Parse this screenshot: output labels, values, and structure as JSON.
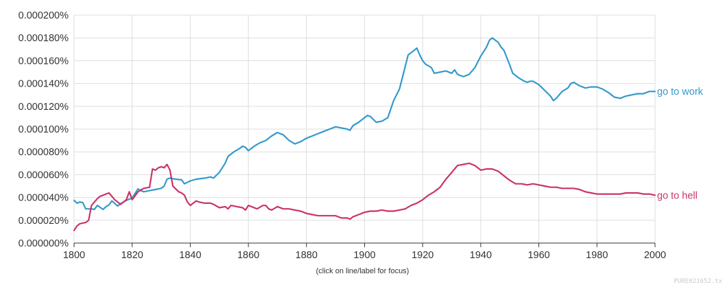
{
  "chart_data": {
    "type": "line",
    "title": "",
    "xlabel": "",
    "ylabel": "",
    "xlim": [
      1800,
      2000
    ],
    "ylim": [
      0,
      0.0002
    ],
    "grid": true,
    "x_ticks": [
      1800,
      1820,
      1840,
      1860,
      1880,
      1900,
      1920,
      1940,
      1960,
      1980,
      2000
    ],
    "x_tick_labels": [
      "1800",
      "1820",
      "1840",
      "1860",
      "1880",
      "1900",
      "1920",
      "1940",
      "1960",
      "1980",
      "2000"
    ],
    "y_ticks": [
      0,
      2e-05,
      4e-05,
      6e-05,
      8e-05,
      0.0001,
      0.00012,
      0.00014,
      0.00016,
      0.00018,
      0.0002
    ],
    "y_tick_labels": [
      "0.000000%",
      "0.000020%",
      "0.000040%",
      "0.000060%",
      "0.000080%",
      "0.000100%",
      "0.000120%",
      "0.000140%",
      "0.000160%",
      "0.000180%",
      "0.000200%"
    ],
    "legend_position": "end-of-line labels, right",
    "series": [
      {
        "name": "go to work",
        "color": "#3399cc",
        "points": [
          [
            1800,
            3.75e-05
          ],
          [
            1801,
            3.5e-05
          ],
          [
            1802,
            3.6e-05
          ],
          [
            1803,
            3.55e-05
          ],
          [
            1804,
            3e-05
          ],
          [
            1806,
            3e-05
          ],
          [
            1807,
            2.95e-05
          ],
          [
            1808,
            3.3e-05
          ],
          [
            1810,
            2.95e-05
          ],
          [
            1811,
            3.2e-05
          ],
          [
            1812,
            3.35e-05
          ],
          [
            1813,
            3.7e-05
          ],
          [
            1815,
            3.25e-05
          ],
          [
            1816,
            3.45e-05
          ],
          [
            1818,
            3.75e-05
          ],
          [
            1820,
            3.95e-05
          ],
          [
            1822,
            4.75e-05
          ],
          [
            1823,
            4.6e-05
          ],
          [
            1824,
            4.5e-05
          ],
          [
            1826,
            4.6e-05
          ],
          [
            1828,
            4.7e-05
          ],
          [
            1830,
            4.8e-05
          ],
          [
            1831,
            5e-05
          ],
          [
            1832,
            5.6e-05
          ],
          [
            1833,
            5.7e-05
          ],
          [
            1835,
            5.6e-05
          ],
          [
            1837,
            5.55e-05
          ],
          [
            1838,
            5.2e-05
          ],
          [
            1840,
            5.45e-05
          ],
          [
            1842,
            5.6e-05
          ],
          [
            1845,
            5.7e-05
          ],
          [
            1847,
            5.8e-05
          ],
          [
            1848,
            5.7e-05
          ],
          [
            1850,
            6.2e-05
          ],
          [
            1851,
            6.6e-05
          ],
          [
            1852,
            7e-05
          ],
          [
            1853,
            7.6e-05
          ],
          [
            1855,
            8e-05
          ],
          [
            1857,
            8.3e-05
          ],
          [
            1858,
            8.5e-05
          ],
          [
            1859,
            8.4e-05
          ],
          [
            1860,
            8.1e-05
          ],
          [
            1862,
            8.5e-05
          ],
          [
            1864,
            8.8e-05
          ],
          [
            1866,
            9e-05
          ],
          [
            1868,
            9.4e-05
          ],
          [
            1870,
            9.7e-05
          ],
          [
            1872,
            9.5e-05
          ],
          [
            1874,
            9e-05
          ],
          [
            1876,
            8.7e-05
          ],
          [
            1878,
            8.9e-05
          ],
          [
            1880,
            9.2e-05
          ],
          [
            1882,
            9.4e-05
          ],
          [
            1884,
            9.6e-05
          ],
          [
            1886,
            9.8e-05
          ],
          [
            1888,
            0.0001
          ],
          [
            1890,
            0.000102
          ],
          [
            1892,
            0.000101
          ],
          [
            1894,
            0.0001
          ],
          [
            1895,
            9.9e-05
          ],
          [
            1896,
            0.000103
          ],
          [
            1898,
            0.000106
          ],
          [
            1900,
            0.00011
          ],
          [
            1901,
            0.000112
          ],
          [
            1902,
            0.000111
          ],
          [
            1904,
            0.000106
          ],
          [
            1906,
            0.000107
          ],
          [
            1908,
            0.00011
          ],
          [
            1910,
            0.000125
          ],
          [
            1912,
            0.000135
          ],
          [
            1913,
            0.000145
          ],
          [
            1914,
            0.000155
          ],
          [
            1915,
            0.000165
          ],
          [
            1916,
            0.000167
          ],
          [
            1917,
            0.000169
          ],
          [
            1918,
            0.000171
          ],
          [
            1919,
            0.000165
          ],
          [
            1920,
            0.00016
          ],
          [
            1921,
            0.000157
          ],
          [
            1923,
            0.000154
          ],
          [
            1924,
            0.000149
          ],
          [
            1926,
            0.00015
          ],
          [
            1928,
            0.000151
          ],
          [
            1930,
            0.000149
          ],
          [
            1931,
            0.000152
          ],
          [
            1932,
            0.000148
          ],
          [
            1933,
            0.000147
          ],
          [
            1934,
            0.000146
          ],
          [
            1936,
            0.000148
          ],
          [
            1938,
            0.000154
          ],
          [
            1940,
            0.000164
          ],
          [
            1942,
            0.000172
          ],
          [
            1943,
            0.000178
          ],
          [
            1944,
            0.00018
          ],
          [
            1946,
            0.000176
          ],
          [
            1947,
            0.000172
          ],
          [
            1948,
            0.000169
          ],
          [
            1950,
            0.000156
          ],
          [
            1951,
            0.000149
          ],
          [
            1953,
            0.000145
          ],
          [
            1955,
            0.000142
          ],
          [
            1956,
            0.000141
          ],
          [
            1957,
            0.000142
          ],
          [
            1958,
            0.000142
          ],
          [
            1960,
            0.000139
          ],
          [
            1962,
            0.000134
          ],
          [
            1964,
            0.000129
          ],
          [
            1965,
            0.000125
          ],
          [
            1966,
            0.000127
          ],
          [
            1968,
            0.000133
          ],
          [
            1970,
            0.000136
          ],
          [
            1971,
            0.00014
          ],
          [
            1972,
            0.000141
          ],
          [
            1974,
            0.000138
          ],
          [
            1976,
            0.000136
          ],
          [
            1978,
            0.000137
          ],
          [
            1980,
            0.000137
          ],
          [
            1982,
            0.000135
          ],
          [
            1984,
            0.000132
          ],
          [
            1986,
            0.000128
          ],
          [
            1988,
            0.000127
          ],
          [
            1990,
            0.000129
          ],
          [
            1992,
            0.00013
          ],
          [
            1994,
            0.000131
          ],
          [
            1996,
            0.000131
          ],
          [
            1998,
            0.000133
          ],
          [
            2000,
            0.000133
          ]
        ]
      },
      {
        "name": "go to hell",
        "color": "#cc3366",
        "points": [
          [
            1800,
            1.1e-05
          ],
          [
            1801,
            1.5e-05
          ],
          [
            1802,
            1.7e-05
          ],
          [
            1804,
            1.8e-05
          ],
          [
            1805,
            2e-05
          ],
          [
            1806,
            3.3e-05
          ],
          [
            1808,
            3.9e-05
          ],
          [
            1809,
            4.1e-05
          ],
          [
            1810,
            4.2e-05
          ],
          [
            1811,
            4.3e-05
          ],
          [
            1812,
            4.4e-05
          ],
          [
            1813,
            4.1e-05
          ],
          [
            1814,
            3.8e-05
          ],
          [
            1816,
            3.4e-05
          ],
          [
            1818,
            3.8e-05
          ],
          [
            1819,
            4.5e-05
          ],
          [
            1820,
            3.8e-05
          ],
          [
            1822,
            4.5e-05
          ],
          [
            1824,
            4.8e-05
          ],
          [
            1826,
            4.9e-05
          ],
          [
            1827,
            6.5e-05
          ],
          [
            1828,
            6.4e-05
          ],
          [
            1829,
            6.6e-05
          ],
          [
            1830,
            6.7e-05
          ],
          [
            1831,
            6.6e-05
          ],
          [
            1832,
            6.9e-05
          ],
          [
            1833,
            6.4e-05
          ],
          [
            1834,
            5e-05
          ],
          [
            1836,
            4.5e-05
          ],
          [
            1837,
            4.4e-05
          ],
          [
            1838,
            4.2e-05
          ],
          [
            1839,
            3.6e-05
          ],
          [
            1840,
            3.3e-05
          ],
          [
            1842,
            3.7e-05
          ],
          [
            1843,
            3.6e-05
          ],
          [
            1845,
            3.5e-05
          ],
          [
            1847,
            3.5e-05
          ],
          [
            1848,
            3.4e-05
          ],
          [
            1850,
            3.1e-05
          ],
          [
            1852,
            3.2e-05
          ],
          [
            1853,
            3e-05
          ],
          [
            1854,
            3.3e-05
          ],
          [
            1856,
            3.2e-05
          ],
          [
            1858,
            3.1e-05
          ],
          [
            1859,
            2.9e-05
          ],
          [
            1860,
            3.3e-05
          ],
          [
            1862,
            3.1e-05
          ],
          [
            1863,
            3e-05
          ],
          [
            1865,
            3.3e-05
          ],
          [
            1866,
            3.3e-05
          ],
          [
            1867,
            3e-05
          ],
          [
            1868,
            2.9e-05
          ],
          [
            1870,
            3.2e-05
          ],
          [
            1872,
            3e-05
          ],
          [
            1874,
            3e-05
          ],
          [
            1876,
            2.9e-05
          ],
          [
            1878,
            2.8e-05
          ],
          [
            1880,
            2.6e-05
          ],
          [
            1882,
            2.5e-05
          ],
          [
            1884,
            2.4e-05
          ],
          [
            1886,
            2.4e-05
          ],
          [
            1888,
            2.4e-05
          ],
          [
            1890,
            2.4e-05
          ],
          [
            1892,
            2.2e-05
          ],
          [
            1894,
            2.2e-05
          ],
          [
            1895,
            2.1e-05
          ],
          [
            1896,
            2.3e-05
          ],
          [
            1898,
            2.5e-05
          ],
          [
            1900,
            2.7e-05
          ],
          [
            1902,
            2.8e-05
          ],
          [
            1904,
            2.8e-05
          ],
          [
            1906,
            2.9e-05
          ],
          [
            1908,
            2.8e-05
          ],
          [
            1910,
            2.8e-05
          ],
          [
            1912,
            2.9e-05
          ],
          [
            1914,
            3e-05
          ],
          [
            1916,
            3.3e-05
          ],
          [
            1918,
            3.5e-05
          ],
          [
            1920,
            3.8e-05
          ],
          [
            1922,
            4.2e-05
          ],
          [
            1924,
            4.5e-05
          ],
          [
            1926,
            4.9e-05
          ],
          [
            1928,
            5.6e-05
          ],
          [
            1930,
            6.2e-05
          ],
          [
            1932,
            6.8e-05
          ],
          [
            1934,
            6.9e-05
          ],
          [
            1936,
            7e-05
          ],
          [
            1938,
            6.8e-05
          ],
          [
            1940,
            6.4e-05
          ],
          [
            1942,
            6.5e-05
          ],
          [
            1944,
            6.5e-05
          ],
          [
            1946,
            6.3e-05
          ],
          [
            1948,
            5.9e-05
          ],
          [
            1950,
            5.5e-05
          ],
          [
            1952,
            5.2e-05
          ],
          [
            1954,
            5.2e-05
          ],
          [
            1956,
            5.1e-05
          ],
          [
            1958,
            5.2e-05
          ],
          [
            1960,
            5.1e-05
          ],
          [
            1962,
            5e-05
          ],
          [
            1964,
            4.9e-05
          ],
          [
            1966,
            4.9e-05
          ],
          [
            1968,
            4.8e-05
          ],
          [
            1970,
            4.8e-05
          ],
          [
            1972,
            4.8e-05
          ],
          [
            1974,
            4.7e-05
          ],
          [
            1976,
            4.5e-05
          ],
          [
            1978,
            4.4e-05
          ],
          [
            1980,
            4.3e-05
          ],
          [
            1982,
            4.3e-05
          ],
          [
            1984,
            4.3e-05
          ],
          [
            1986,
            4.3e-05
          ],
          [
            1988,
            4.3e-05
          ],
          [
            1990,
            4.4e-05
          ],
          [
            1992,
            4.4e-05
          ],
          [
            1994,
            4.4e-05
          ],
          [
            1996,
            4.3e-05
          ],
          [
            1998,
            4.3e-05
          ],
          [
            2000,
            4.2e-05
          ]
        ]
      }
    ]
  },
  "footer": {
    "hint": "(click on line/label for focus)",
    "watermark": "PURE021652.tx"
  }
}
